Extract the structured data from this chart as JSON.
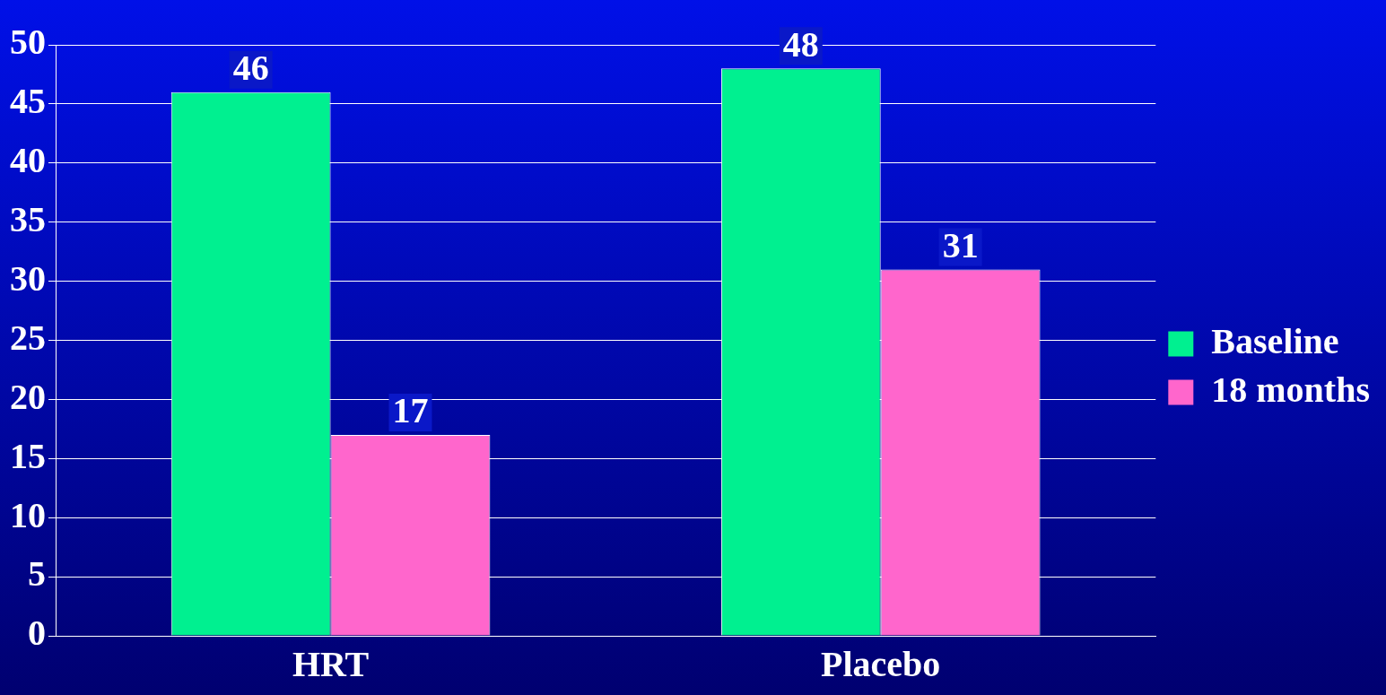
{
  "chart_data": {
    "type": "bar",
    "categories": [
      "HRT",
      "Placebo"
    ],
    "series": [
      {
        "name": "Baseline",
        "color": "#00f090",
        "values": [
          46,
          48
        ]
      },
      {
        "name": "18 months",
        "color": "#ff66cc",
        "values": [
          17,
          31
        ]
      }
    ],
    "ylim": [
      0,
      50
    ],
    "yticks": [
      0,
      5,
      10,
      15,
      20,
      25,
      30,
      35,
      40,
      45,
      50
    ],
    "grid": "y",
    "legend": "right",
    "data_labels": true
  }
}
